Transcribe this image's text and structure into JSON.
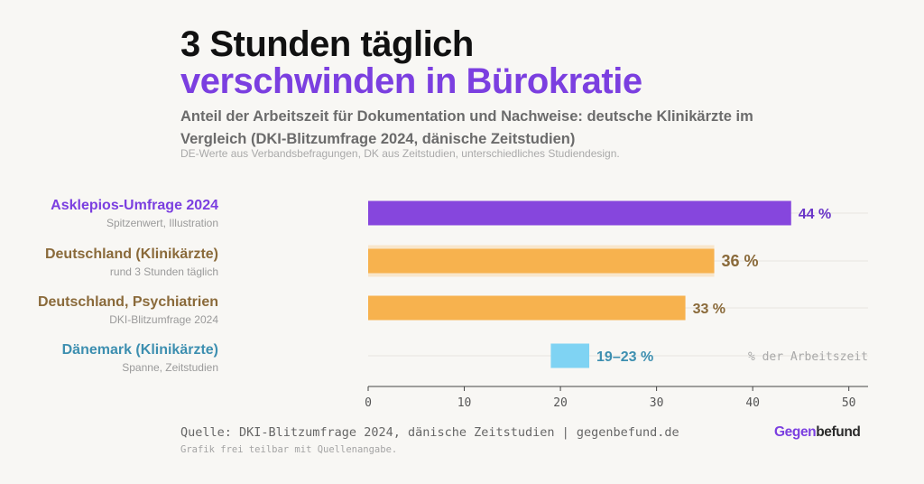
{
  "header": {
    "title_line1": "3 Stunden täglich",
    "title_line2": "verschwinden in Bürokratie",
    "subtitle": "Anteil der Arbeitszeit für Dokumentation und Nachweise: deutsche Klinikärzte im Vergleich (DKI-Blitzumfrage 2024, dänische Zeitstudien)",
    "note": "DE-Werte aus Verbandsbefragungen, DK aus Zeitstudien, unterschiedliches Studiendesign."
  },
  "rows": [
    {
      "label": "Asklepios-Umfrage 2024",
      "sublabel": "Spitzenwert, Illustration",
      "color": "#7b3fe0"
    },
    {
      "label": "Deutschland (Klinikärzte)",
      "sublabel": "rund 3 Stunden täglich",
      "color": "#8a6a3a"
    },
    {
      "label": "Deutschland, Psychiatrien",
      "sublabel": "DKI-Blitzumfrage 2024",
      "color": "#8a6a3a"
    },
    {
      "label": "Dänemark (Klinikärzte)",
      "sublabel": "Spanne, Zeitstudien",
      "color": "#3d8fb0"
    }
  ],
  "chart_data": {
    "type": "bar",
    "orientation": "horizontal",
    "categories": [
      "Asklepios-Umfrage 2024",
      "Deutschland (Klinikärzte)",
      "Deutschland, Psychiatrien",
      "Dänemark (Klinikärzte)"
    ],
    "bars": [
      {
        "start": 0,
        "end": 44,
        "label": "44 %",
        "color": "#8646dd",
        "label_color": "#6a35c8",
        "highlight": false
      },
      {
        "start": 0,
        "end": 36,
        "label": "36 %",
        "color": "#f7b24e",
        "label_color": "#8a6a3a",
        "highlight": true,
        "highlight_color": "#f8e6cb"
      },
      {
        "start": 0,
        "end": 33,
        "label": "33 %",
        "color": "#f7b24e",
        "label_color": "#8a6a3a",
        "highlight": false
      },
      {
        "start": 19,
        "end": 23,
        "label": "19–23 %",
        "color": "#7fd3f3",
        "label_color": "#3d8fb0",
        "highlight": false
      }
    ],
    "xlim": [
      0,
      52
    ],
    "xticks": [
      0,
      10,
      20,
      30,
      40,
      50
    ],
    "axis_note": "% der Arbeitszeit",
    "grid": true
  },
  "footer": {
    "source": "Quelle: DKI-Blitzumfrage 2024, dänische Zeitstudien | gegenbefund.de",
    "share": "Grafik frei teilbar mit Quellenangabe.",
    "brand_part1": "Gegen",
    "brand_part2": "befund"
  }
}
